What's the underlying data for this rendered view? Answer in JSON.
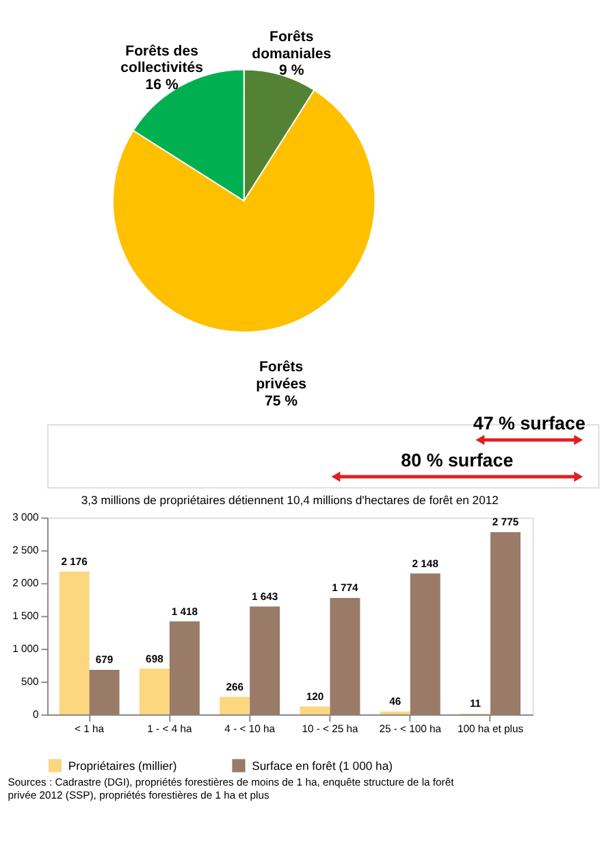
{
  "chart_data": [
    {
      "type": "pie",
      "categories": [
        "Forêts domaniales",
        "Forêts privées",
        "Forêts des collectivités"
      ],
      "values": [
        9,
        75,
        16
      ],
      "colors": [
        "#548235",
        "#ffc000",
        "#00b050"
      ],
      "value_labels": [
        "9 %",
        "75 %",
        "16 %"
      ],
      "legend": false
    },
    {
      "type": "bar",
      "title": "3,3 millions de propriétaires détiennent 10,4 millions d'hectares de forêt en 2012",
      "categories": [
        "< 1 ha",
        "1 - < 4 ha",
        "4 - < 10 ha",
        "10 - < 25 ha",
        "25 - < 100 ha",
        "100 ha et plus"
      ],
      "series": [
        {
          "name": "Propriétaires (millier)",
          "color": "#fcd77f",
          "values": [
            2176,
            698,
            266,
            120,
            46,
            11
          ],
          "value_labels": [
            "2 176",
            "698",
            "266",
            "120",
            "46",
            "11"
          ]
        },
        {
          "name": "Surface en forêt (1 000 ha)",
          "color": "#9a7b67",
          "values": [
            679,
            1418,
            1643,
            1774,
            2148,
            2775
          ],
          "value_labels": [
            "679",
            "1 418",
            "1 643",
            "1 774",
            "2 148",
            "2 775"
          ]
        }
      ],
      "ylim": [
        0,
        3000
      ],
      "yticks": [
        0,
        500,
        {
          "value": 1000,
          "label": "1 000"
        },
        {
          "value": 1500,
          "label": "1 500"
        },
        {
          "value": 2000,
          "label": "2 000"
        },
        {
          "value": 2500,
          "label": "2 500"
        },
        {
          "value": 3000,
          "label": "3 000"
        }
      ],
      "grid": false,
      "legend": "bottom",
      "annotations": [
        "47 % surface",
        "80 % surface",
        "Sources : Cadrastre (DGI), propriétés forestières de moins de 1 ha, enquête structure de la forêt privée 2012 (SSP), propriétés forestières de 1 ha et plus"
      ]
    }
  ]
}
